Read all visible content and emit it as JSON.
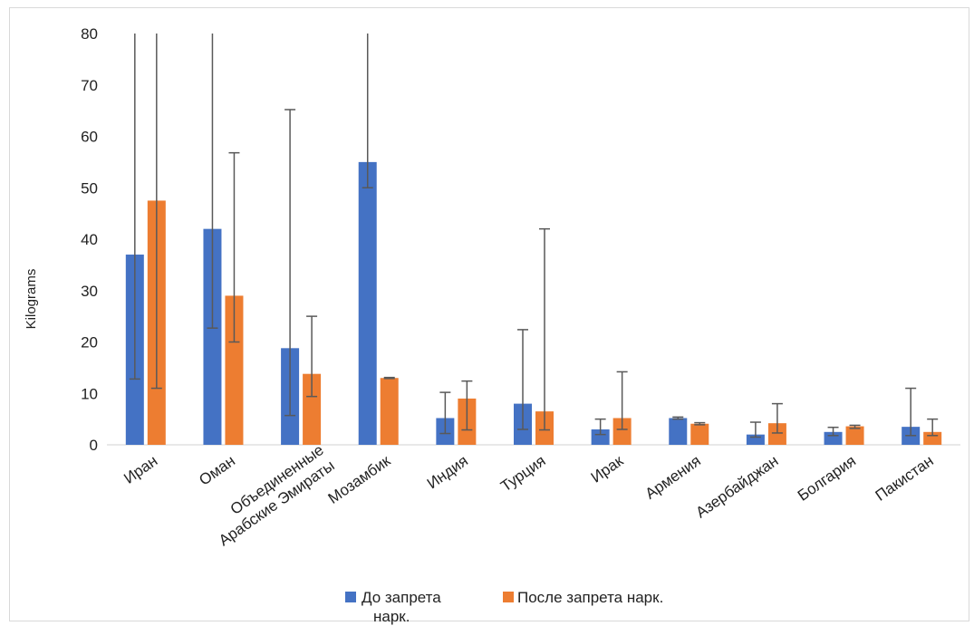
{
  "chart_data": {
    "type": "bar",
    "title": "",
    "xlabel": "",
    "ylabel": "Kilograms",
    "ylim": [
      0,
      80
    ],
    "yticks": [
      0,
      10,
      20,
      30,
      40,
      50,
      60,
      70,
      80
    ],
    "grid": false,
    "legend_position": "bottom",
    "categories": [
      [
        "Иран"
      ],
      [
        "Оман"
      ],
      [
        "Объединенные",
        "Арабские Эмираты"
      ],
      [
        "Мозамбик"
      ],
      [
        "Индия"
      ],
      [
        "Турция"
      ],
      [
        "Ирак"
      ],
      [
        "Армения"
      ],
      [
        "Азербайджан"
      ],
      [
        "Болгария"
      ],
      [
        "Пакистан"
      ]
    ],
    "series": [
      {
        "name": [
          "До запрета",
          "нарк."
        ],
        "color": "#4472C4",
        "values": [
          37,
          42,
          18.8,
          55,
          5.2,
          8,
          3,
          5.2,
          2,
          2.5,
          3.5
        ],
        "err_low": [
          12.8,
          22.7,
          5.7,
          50,
          2.2,
          3,
          2,
          5,
          1.5,
          1.8,
          1.8
        ],
        "err_high": [
          80,
          80,
          65.2,
          80,
          10.2,
          22.4,
          5,
          5.4,
          4.4,
          3.4,
          11
        ]
      },
      {
        "name": [
          "После запрета нарк."
        ],
        "color": "#ED7D31",
        "values": [
          47.5,
          29,
          13.8,
          13,
          9,
          6.5,
          5.2,
          4.1,
          4.2,
          3.6,
          2.5
        ],
        "err_low": [
          11,
          20,
          9.4,
          12.9,
          2.9,
          2.9,
          3,
          3.9,
          2.3,
          3.2,
          1.8
        ],
        "err_high": [
          80,
          56.8,
          25,
          13.1,
          12.4,
          42,
          14.2,
          4.3,
          8,
          3.8,
          5
        ]
      }
    ]
  }
}
